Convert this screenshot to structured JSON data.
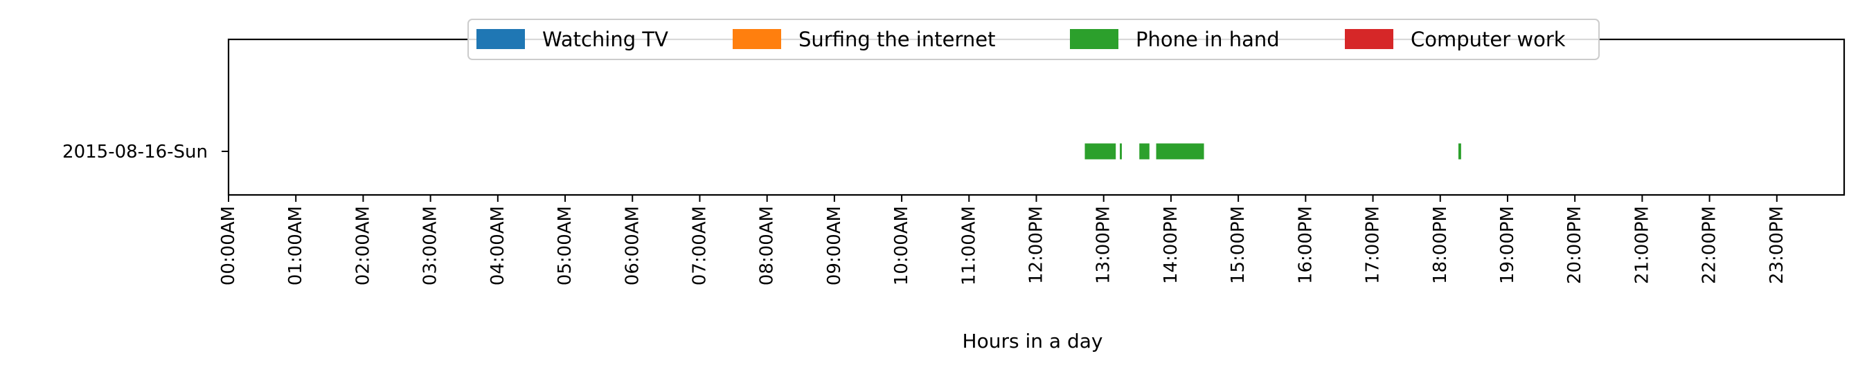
{
  "chart_data": {
    "type": "timeline",
    "xlabel": "Hours in a day",
    "xlim": [
      0,
      24
    ],
    "x_ticks": [
      "00:00AM",
      "01:00AM",
      "02:00AM",
      "03:00AM",
      "04:00AM",
      "05:00AM",
      "06:00AM",
      "07:00AM",
      "08:00AM",
      "09:00AM",
      "10:00AM",
      "11:00AM",
      "12:00PM",
      "13:00PM",
      "14:00PM",
      "15:00PM",
      "16:00PM",
      "17:00PM",
      "18:00PM",
      "19:00PM",
      "20:00PM",
      "21:00PM",
      "22:00PM",
      "23:00PM"
    ],
    "categories": [
      "2015-08-16-Sun"
    ],
    "legend_position": "top-center",
    "grid": false,
    "series": [
      {
        "name": "Watching TV",
        "color": "#1f77b4",
        "intervals": []
      },
      {
        "name": "Surfing the internet",
        "color": "#ff7f0e",
        "intervals": []
      },
      {
        "name": "Phone in hand",
        "color": "#2ca02c",
        "intervals": [
          {
            "category": "2015-08-16-Sun",
            "start": 12.72,
            "end": 13.18
          },
          {
            "category": "2015-08-16-Sun",
            "start": 13.24,
            "end": 13.27
          },
          {
            "category": "2015-08-16-Sun",
            "start": 13.53,
            "end": 13.68
          },
          {
            "category": "2015-08-16-Sun",
            "start": 13.78,
            "end": 14.49
          },
          {
            "category": "2015-08-16-Sun",
            "start": 18.27,
            "end": 18.31
          }
        ]
      },
      {
        "name": "Computer work",
        "color": "#d62728",
        "intervals": []
      }
    ]
  }
}
